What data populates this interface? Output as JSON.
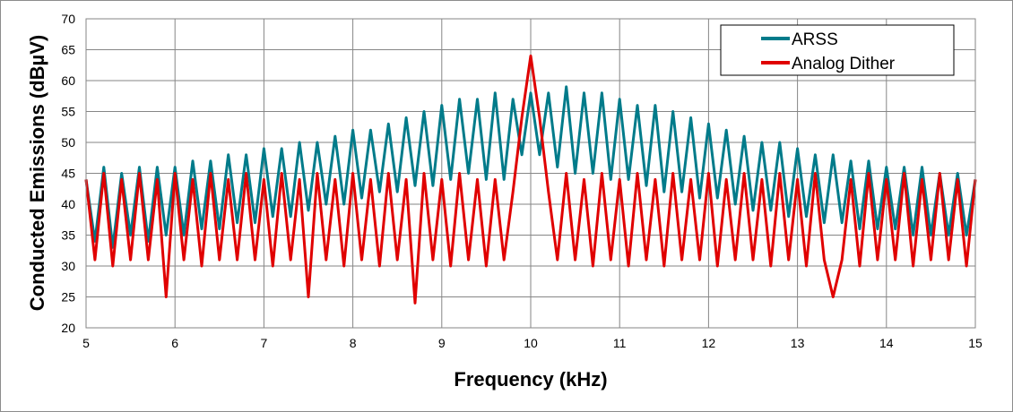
{
  "chart_data": {
    "type": "line",
    "xlabel": "Frequency (kHz)",
    "ylabel": "Conducted Emissions (dBµV)",
    "xlim": [
      5,
      15
    ],
    "ylim": [
      20,
      70
    ],
    "xticks": [
      5,
      6,
      7,
      8,
      9,
      10,
      11,
      12,
      13,
      14,
      15
    ],
    "yticks": [
      20,
      25,
      30,
      35,
      40,
      45,
      50,
      55,
      60,
      65,
      70
    ],
    "grid": true,
    "legend_position": "top-right",
    "x": [
      5.0,
      5.1,
      5.2,
      5.3,
      5.4,
      5.5,
      5.6,
      5.7,
      5.8,
      5.9,
      6.0,
      6.1,
      6.2,
      6.3,
      6.4,
      6.5,
      6.6,
      6.7,
      6.8,
      6.9,
      7.0,
      7.1,
      7.2,
      7.3,
      7.4,
      7.5,
      7.6,
      7.7,
      7.8,
      7.9,
      8.0,
      8.1,
      8.2,
      8.3,
      8.4,
      8.5,
      8.6,
      8.7,
      8.8,
      8.9,
      9.0,
      9.1,
      9.2,
      9.3,
      9.4,
      9.5,
      9.6,
      9.7,
      9.8,
      9.9,
      10.0,
      10.1,
      10.2,
      10.3,
      10.4,
      10.5,
      10.6,
      10.7,
      10.8,
      10.9,
      11.0,
      11.1,
      11.2,
      11.3,
      11.4,
      11.5,
      11.6,
      11.7,
      11.8,
      11.9,
      12.0,
      12.1,
      12.2,
      12.3,
      12.4,
      12.5,
      12.6,
      12.7,
      12.8,
      12.9,
      13.0,
      13.1,
      13.2,
      13.3,
      13.4,
      13.5,
      13.6,
      13.7,
      13.8,
      13.9,
      14.0,
      14.1,
      14.2,
      14.3,
      14.4,
      14.5,
      14.6,
      14.7,
      14.8,
      14.9,
      15.0
    ],
    "series": [
      {
        "name": "ARSS",
        "color": "#007b8a",
        "values": [
          44,
          34,
          46,
          33,
          45,
          35,
          46,
          34,
          46,
          35,
          46,
          35,
          47,
          36,
          47,
          36,
          48,
          37,
          48,
          37,
          49,
          38,
          49,
          38,
          50,
          39,
          50,
          40,
          51,
          40,
          52,
          41,
          52,
          42,
          53,
          42,
          54,
          43,
          55,
          43,
          56,
          44,
          57,
          45,
          57,
          44,
          58,
          44,
          57,
          48,
          58,
          48,
          58,
          46,
          59,
          45,
          58,
          45,
          58,
          44,
          57,
          44,
          56,
          43,
          56,
          42,
          55,
          42,
          54,
          41,
          53,
          41,
          52,
          40,
          51,
          39,
          50,
          39,
          50,
          38,
          49,
          38,
          48,
          37,
          48,
          37,
          47,
          36,
          47,
          36,
          46,
          36,
          46,
          35,
          46,
          35,
          45,
          35,
          45,
          35,
          44
        ]
      },
      {
        "name": "Analog Dither",
        "color": "#e00000",
        "values": [
          44,
          31,
          45,
          30,
          44,
          31,
          45,
          31,
          44,
          25,
          45,
          31,
          44,
          30,
          45,
          31,
          44,
          31,
          45,
          31,
          44,
          30,
          45,
          31,
          44,
          25,
          45,
          31,
          44,
          30,
          45,
          31,
          44,
          30,
          45,
          31,
          44,
          24,
          45,
          31,
          44,
          30,
          45,
          31,
          44,
          30,
          44,
          31,
          42,
          54,
          64,
          54,
          42,
          31,
          45,
          31,
          44,
          30,
          45,
          31,
          44,
          30,
          45,
          31,
          44,
          30,
          45,
          31,
          44,
          31,
          45,
          30,
          44,
          31,
          45,
          31,
          44,
          30,
          45,
          31,
          44,
          30,
          45,
          31,
          25,
          31,
          44,
          30,
          45,
          31,
          44,
          31,
          45,
          30,
          44,
          31,
          45,
          31,
          44,
          30,
          44
        ]
      }
    ]
  }
}
